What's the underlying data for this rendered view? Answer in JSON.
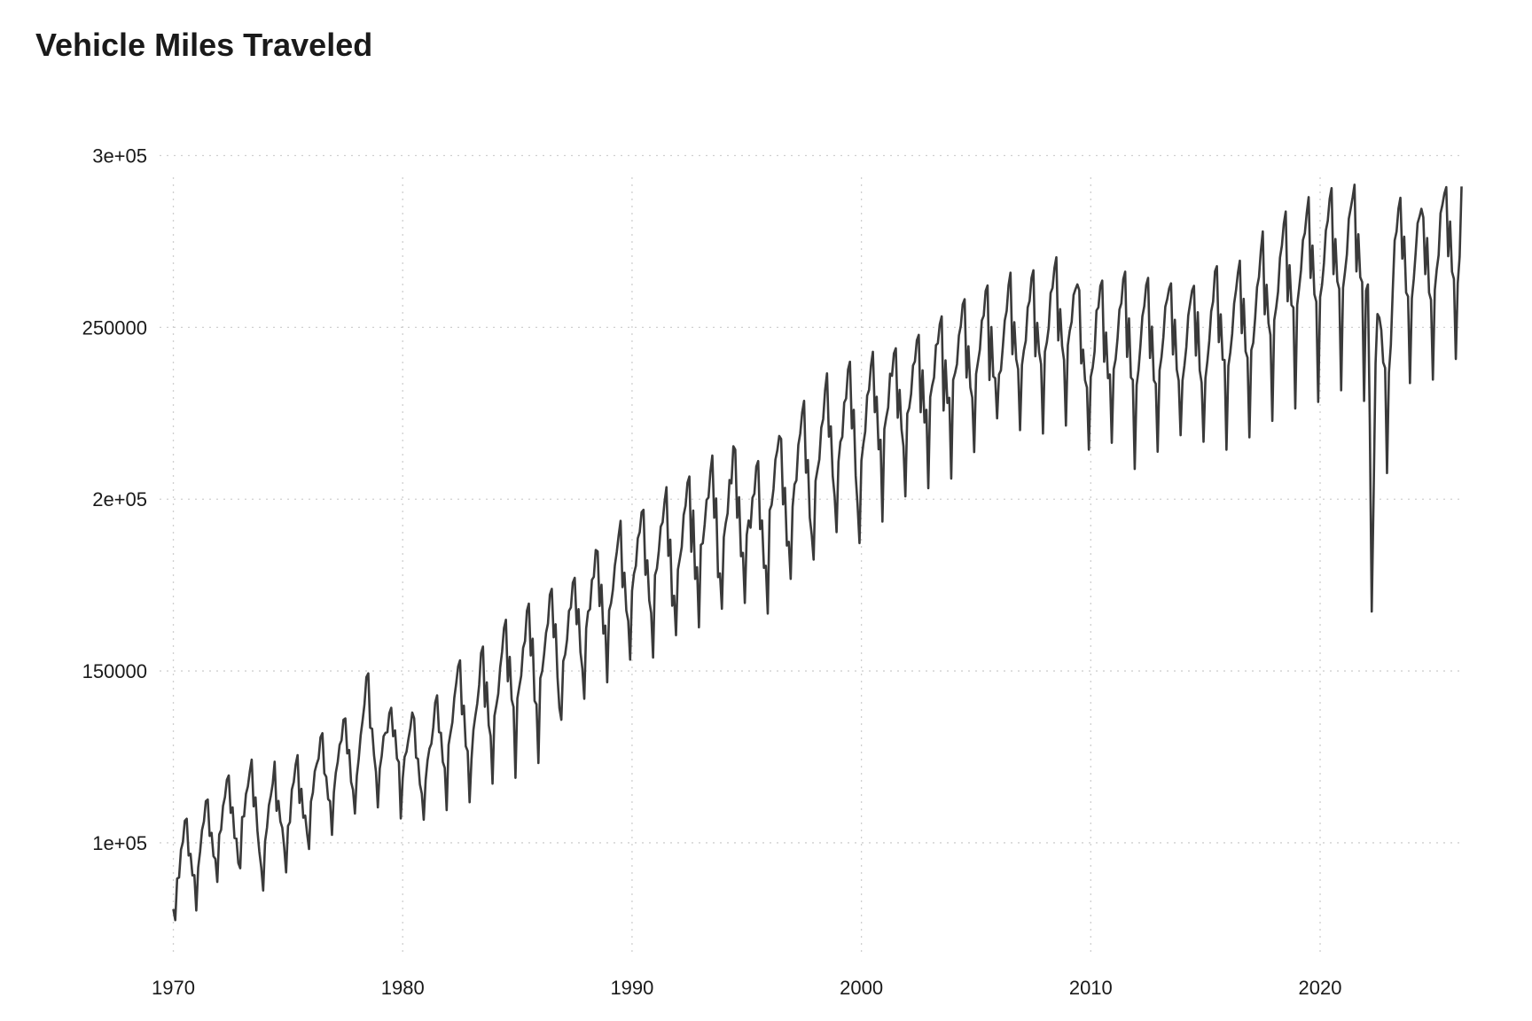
{
  "chart_data": {
    "type": "line",
    "title": "Vehicle Miles Traveled",
    "xlabel": "",
    "ylabel": "",
    "grid": true,
    "legend": "none",
    "line_color": "#3a3a3a",
    "xlim": [
      1969.4,
      2026.3
    ],
    "ylim": [
      68000,
      304000
    ],
    "x_ticks": [
      {
        "value": 1970,
        "label": "1970"
      },
      {
        "value": 1980,
        "label": "1980"
      },
      {
        "value": 1990,
        "label": "1990"
      },
      {
        "value": 2000,
        "label": "2000"
      },
      {
        "value": 2010,
        "label": "2010"
      },
      {
        "value": 2020,
        "label": "2020"
      }
    ],
    "y_ticks": [
      {
        "value": 100000,
        "label": "1e+05"
      },
      {
        "value": 150000,
        "label": "150000"
      },
      {
        "value": 200000,
        "label": "2e+05"
      },
      {
        "value": 250000,
        "label": "250000"
      },
      {
        "value": 300000,
        "label": "3e+05"
      }
    ],
    "series": [
      {
        "x_start": "1970-01",
        "frequency": "monthly",
        "values": [
          80700,
          77500,
          89600,
          89900,
          98000,
          100200,
          106400,
          107000,
          96300,
          96800,
          90500,
          90600,
          80300,
          92800,
          97400,
          103700,
          106200,
          112100,
          112600,
          102000,
          102900,
          96100,
          95300,
          88600,
          102400,
          103800,
          110700,
          113300,
          118300,
          119600,
          108700,
          110300,
          101400,
          101200,
          94100,
          92600,
          107500,
          107700,
          114200,
          116400,
          120700,
          124200,
          110600,
          113200,
          103500,
          97400,
          92800,
          86100,
          100400,
          104400,
          110900,
          113700,
          117200,
          123600,
          109300,
          112200,
          106200,
          104400,
          98700,
          91400,
          104900,
          106000,
          115500,
          117700,
          122800,
          125500,
          111600,
          115700,
          107300,
          107900,
          102600,
          98200,
          112000,
          114600,
          120800,
          122900,
          124500,
          130700,
          131900,
          120200,
          119200,
          112700,
          112100,
          102300,
          114700,
          120400,
          123500,
          128500,
          129800,
          135800,
          136200,
          126000,
          127000,
          117700,
          115400,
          108500,
          119500,
          124500,
          131200,
          135500,
          140300,
          148200,
          149300,
          133500,
          133200,
          125500,
          120700,
          110300,
          121600,
          125200,
          131000,
          132000,
          132200,
          137700,
          139300,
          131000,
          132700,
          124500,
          123500,
          107100,
          118700,
          125000,
          126500,
          130200,
          133400,
          137900,
          136200,
          124800,
          124400,
          117000,
          114300,
          106700,
          118200,
          124000,
          127400,
          128800,
          133600,
          140800,
          142900,
          132200,
          132000,
          123500,
          121800,
          109500,
          128500,
          131900,
          135100,
          142200,
          146400,
          151300,
          153100,
          137400,
          139900,
          128100,
          126700,
          111800,
          124300,
          132800,
          136900,
          140500,
          145900,
          155200,
          157100,
          139600,
          146700,
          134200,
          131100,
          117200,
          136900,
          140000,
          143400,
          151000,
          155600,
          162500,
          164900,
          147000,
          154100,
          141700,
          139500,
          118900,
          142000,
          145400,
          148600,
          156700,
          158700,
          167500,
          169600,
          154500,
          159400,
          141300,
          140300,
          123200,
          147900,
          150000,
          155000,
          161100,
          163800,
          172200,
          173900,
          159800,
          163600,
          148200,
          139200,
          135800,
          152900,
          154800,
          159100,
          167500,
          168500,
          175700,
          177100,
          163600,
          168000,
          155500,
          150700,
          141900,
          162400,
          167300,
          168000,
          176500,
          177400,
          185200,
          184800,
          168900,
          175100,
          160900,
          163200,
          146700,
          167600,
          169700,
          173700,
          180700,
          184600,
          189500,
          193700,
          174400,
          178600,
          167600,
          164600,
          153300,
          173300,
          178300,
          180600,
          188600,
          190400,
          196200,
          196900,
          178000,
          182200,
          170500,
          166900,
          153900,
          177900,
          179800,
          184900,
          192000,
          193300,
          199200,
          203500,
          183500,
          188200,
          169000,
          171900,
          160400,
          179500,
          182700,
          186100,
          195400,
          198100,
          204800,
          206600,
          184700,
          196700,
          176800,
          180200,
          162700,
          186700,
          187200,
          192700,
          199800,
          200500,
          208000,
          212700,
          194600,
          200200,
          177300,
          178400,
          168100,
          188900,
          193000,
          195900,
          205600,
          204600,
          215400,
          214400,
          194600,
          200600,
          183400,
          184400,
          169800,
          189600,
          193800,
          191700,
          200400,
          201600,
          209500,
          211100,
          191300,
          193800,
          180000,
          180600,
          166700,
          196800,
          198300,
          202900,
          211500,
          214200,
          218400,
          217500,
          198500,
          203300,
          186500,
          187600,
          176800,
          197800,
          204300,
          205500,
          215800,
          219100,
          225200,
          228600,
          207700,
          211400,
          194600,
          189600,
          182400,
          205300,
          208500,
          211600,
          220800,
          223300,
          231700,
          236600,
          218200,
          221200,
          206700,
          200700,
          190400,
          210900,
          216700,
          218100,
          228100,
          229300,
          237700,
          240000,
          220600,
          226000,
          206900,
          198200,
          187200,
          211200,
          216000,
          219700,
          230100,
          231800,
          238900,
          242900,
          225300,
          229800,
          214500,
          217300,
          193500,
          220400,
          223800,
          226700,
          236500,
          235900,
          242400,
          243900,
          223700,
          231800,
          220300,
          215400,
          200800,
          224900,
          226500,
          230600,
          238900,
          240100,
          246200,
          247800,
          225300,
          237500,
          222300,
          226000,
          203200,
          229700,
          233000,
          235400,
          244800,
          245400,
          250900,
          253200,
          225800,
          240400,
          228000,
          229500,
          206000,
          234700,
          236700,
          239300,
          247600,
          250400,
          256700,
          258200,
          235400,
          244500,
          232500,
          229600,
          213700,
          236400,
          240000,
          243600,
          252000,
          253400,
          260600,
          262200,
          234700,
          250100,
          235700,
          235200,
          223500,
          236300,
          237500,
          244400,
          252000,
          254800,
          262300,
          265900,
          242200,
          251500,
          240700,
          237800,
          220100,
          239000,
          243300,
          246100,
          255800,
          257700,
          264400,
          266600,
          241600,
          251300,
          242700,
          239300,
          219100,
          242900,
          245600,
          249900,
          260000,
          261500,
          267300,
          270400,
          246200,
          255300,
          244600,
          240500,
          221400,
          244800,
          249000,
          251600,
          259400,
          261100,
          262500,
          260800,
          239500,
          243500,
          234600,
          232500,
          214400,
          235600,
          238300,
          243000,
          254900,
          255800,
          262000,
          263600,
          240000,
          248500,
          235200,
          236300,
          216400,
          237800,
          240700,
          246700,
          255200,
          257000,
          264000,
          266200,
          241400,
          252600,
          235400,
          234700,
          208800,
          233200,
          237700,
          244800,
          253200,
          256200,
          262300,
          264400,
          241100,
          250200,
          234600,
          233600,
          213800,
          237500,
          241300,
          247200,
          256000,
          258200,
          261300,
          262800,
          242100,
          252200,
          237700,
          234500,
          218600,
          234500,
          238900,
          244300,
          253400,
          257000,
          260700,
          262100,
          241800,
          254400,
          237500,
          233900,
          216700,
          235200,
          240100,
          246000,
          254600,
          257500,
          266300,
          267800,
          245700,
          253800,
          240600,
          240500,
          214400,
          238800,
          242700,
          248200,
          256900,
          260800,
          265900,
          269400,
          248300,
          258300,
          243000,
          241200,
          218000,
          243400,
          245500,
          252700,
          261700,
          264600,
          272400,
          277900,
          253800,
          262400,
          251200,
          247800,
          222800,
          252100,
          255700,
          260400,
          270300,
          273800,
          280200,
          283700,
          257600,
          268100,
          256500,
          255800,
          226400,
          256500,
          261400,
          266600,
          275400,
          277400,
          283300,
          287900,
          264400,
          273800,
          259600,
          257500,
          228300,
          258800,
          262400,
          268700,
          278200,
          281000,
          287400,
          290500,
          265500,
          275700,
          263400,
          261200,
          231700,
          261500,
          266100,
          271200,
          281600,
          284600,
          287800,
          291500,
          266300,
          277100,
          264600,
          263200,
          228600,
          260700,
          262500,
          221700,
          167300,
          201600,
          239500,
          253900,
          252800,
          249200,
          239800,
          238200,
          207600,
          236800,
          244900,
          260800,
          275300,
          277900,
          284600,
          287700,
          270000,
          276400,
          260100,
          259000,
          233800,
          258400,
          264100,
          271800,
          280300,
          282200,
          284500,
          282000,
          265500,
          276000,
          260100,
          258000,
          234800,
          260900,
          266800,
          271000,
          283200,
          285700,
          288900,
          290800,
          270700,
          280800,
          266200,
          264100,
          240800,
          262800,
          270600,
          291000
        ]
      }
    ]
  }
}
